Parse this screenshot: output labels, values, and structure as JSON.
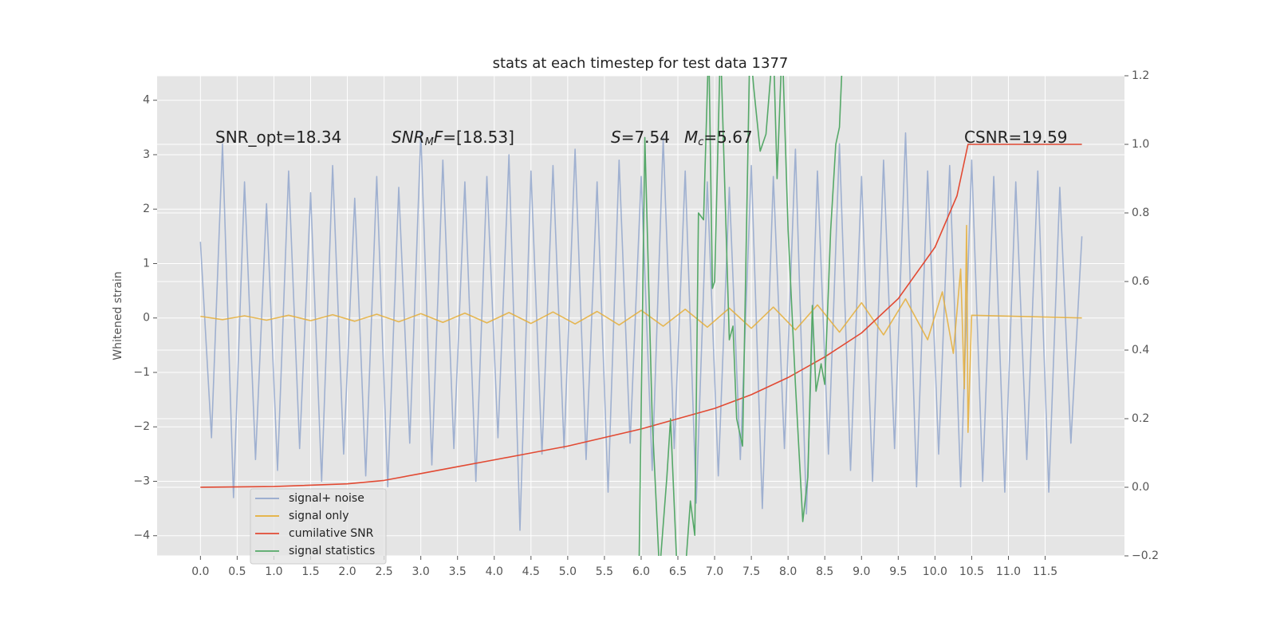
{
  "chart_data": {
    "type": "line",
    "title": "stats at each timestep for test data 1377",
    "ylabel": "Whitened strain",
    "annotations": [
      [
        {
          "text": "SNR_opt=18.34"
        }
      ],
      [
        {
          "text": "SNR",
          "style": "italic"
        },
        {
          "text": "M",
          "style": "italic-sub"
        },
        {
          "text": "F",
          "style": "italic"
        },
        {
          "text": "=[18.53]"
        }
      ],
      [
        {
          "text": "S",
          "style": "italic"
        },
        {
          "text": "=7.54"
        }
      ],
      [
        {
          "text": "M",
          "style": "italic"
        },
        {
          "text": "c",
          "style": "italic-sub"
        },
        {
          "text": "=5.67"
        }
      ],
      [
        {
          "text": "CSNR=19.59"
        }
      ]
    ],
    "xlim": [
      -0.59,
      12.58
    ],
    "xticks": [
      {
        "value": 0,
        "label": "0.0"
      },
      0.5,
      {
        "value": 1,
        "label": "1.0"
      },
      1.5,
      {
        "value": 2,
        "label": "2.0"
      },
      2.5,
      {
        "value": 3,
        "label": "3.0"
      },
      3.5,
      {
        "value": 4,
        "label": "4.0"
      },
      4.5,
      {
        "value": 5,
        "label": "5.0"
      },
      5.5,
      {
        "value": 6,
        "label": "6.0"
      },
      6.5,
      {
        "value": 7,
        "label": "7.0"
      },
      7.5,
      {
        "value": 8,
        "label": "8.0"
      },
      8.5,
      {
        "value": 9,
        "label": "9.0"
      },
      9.5,
      {
        "value": 10,
        "label": "10.0"
      },
      10.5,
      {
        "value": 11,
        "label": "11.0"
      },
      11.5
    ],
    "ylim": [
      -4.37,
      4.45
    ],
    "yticks": [
      {
        "value": -4,
        "label": "−4"
      },
      {
        "value": -3,
        "label": "−3"
      },
      {
        "value": -2,
        "label": "−2"
      },
      {
        "value": -1,
        "label": "−1"
      },
      0,
      1,
      2,
      3,
      4
    ],
    "y2lim": [
      -0.2,
      1.2
    ],
    "y2ticks": [
      {
        "value": -0.2,
        "label": "−0.2"
      },
      {
        "value": 0,
        "label": "0.0"
      },
      0.2,
      0.4,
      0.6,
      0.8,
      {
        "value": 1,
        "label": "1.0"
      },
      1.2
    ],
    "grid": true,
    "legend": "lower left",
    "series": [
      {
        "name": "signal+ noise",
        "color": "#93a7cc",
        "x": [
          0,
          0.15,
          0.3,
          0.45,
          0.6,
          0.75,
          0.9,
          1.05,
          1.2,
          1.35,
          1.5,
          1.65,
          1.8,
          1.95,
          2.1,
          2.25,
          2.4,
          2.55,
          2.7,
          2.85,
          3,
          3.15,
          3.3,
          3.45,
          3.6,
          3.75,
          3.9,
          4.05,
          4.2,
          4.35,
          4.5,
          4.65,
          4.8,
          4.95,
          5.1,
          5.25,
          5.4,
          5.55,
          5.7,
          5.85,
          6,
          6.15,
          6.3,
          6.45,
          6.6,
          6.75,
          6.9,
          7.05,
          7.2,
          7.35,
          7.5,
          7.65,
          7.8,
          7.95,
          8.1,
          8.25,
          8.4,
          8.55,
          8.7,
          8.85,
          9,
          9.15,
          9.3,
          9.45,
          9.6,
          9.75,
          9.9,
          10.05,
          10.2,
          10.35,
          10.5,
          10.65,
          10.8,
          10.95,
          11.1,
          11.25,
          11.4,
          11.55,
          11.7,
          11.85,
          12
        ],
        "values": [
          1.4,
          -2.2,
          3.2,
          -3.3,
          2.5,
          -2.6,
          2.1,
          -2.8,
          2.7,
          -2.4,
          2.3,
          -3.0,
          2.8,
          -2.5,
          2.2,
          -2.9,
          2.6,
          -3.1,
          2.4,
          -2.3,
          3.4,
          -2.7,
          2.9,
          -2.4,
          2.5,
          -3.0,
          2.6,
          -2.2,
          3.0,
          -3.9,
          2.7,
          -2.5,
          2.8,
          -2.4,
          3.1,
          -2.6,
          2.5,
          -3.2,
          2.9,
          -2.3,
          2.6,
          -2.8,
          3.3,
          -2.4,
          2.7,
          -3.4,
          2.5,
          -2.9,
          2.4,
          -2.6,
          2.8,
          -3.5,
          2.6,
          -2.4,
          3.1,
          -3.6,
          2.7,
          -2.5,
          3.2,
          -2.8,
          2.6,
          -3.0,
          2.9,
          -2.4,
          3.4,
          -3.1,
          2.7,
          -2.5,
          2.8,
          -3.1,
          2.9,
          -3.0,
          2.6,
          -3.2,
          2.5,
          -2.6,
          2.7,
          -3.2,
          2.4,
          -2.3,
          1.5
        ]
      },
      {
        "name": "signal only",
        "color": "#e5ae38",
        "x": [
          0,
          0.3,
          0.6,
          0.9,
          1.2,
          1.5,
          1.8,
          2.1,
          2.4,
          2.7,
          3,
          3.3,
          3.6,
          3.9,
          4.2,
          4.5,
          4.8,
          5.1,
          5.4,
          5.7,
          6,
          6.3,
          6.6,
          6.9,
          7.2,
          7.5,
          7.8,
          8.1,
          8.4,
          8.7,
          9,
          9.3,
          9.6,
          9.9,
          10.1,
          10.25,
          10.35,
          10.4,
          10.43,
          10.45,
          10.5,
          12
        ],
        "values": [
          0.03,
          -0.03,
          0.04,
          -0.04,
          0.05,
          -0.05,
          0.06,
          -0.06,
          0.07,
          -0.07,
          0.08,
          -0.08,
          0.09,
          -0.09,
          0.1,
          -0.1,
          0.11,
          -0.11,
          0.12,
          -0.13,
          0.14,
          -0.15,
          0.16,
          -0.17,
          0.18,
          -0.19,
          0.2,
          -0.22,
          0.24,
          -0.26,
          0.28,
          -0.31,
          0.35,
          -0.4,
          0.48,
          -0.65,
          0.9,
          -1.3,
          1.7,
          -2.1,
          0.05,
          0
        ]
      },
      {
        "name": "cumilative SNR",
        "color": "#e24a33",
        "axis": "y2",
        "x": [
          0,
          1,
          2,
          2.5,
          3,
          3.5,
          4,
          4.5,
          5,
          5.5,
          6,
          6.5,
          7,
          7.5,
          8,
          8.5,
          9,
          9.5,
          10,
          10.3,
          10.45,
          12
        ],
        "values": [
          0,
          0.002,
          0.01,
          0.02,
          0.04,
          0.06,
          0.08,
          0.1,
          0.12,
          0.145,
          0.17,
          0.2,
          0.23,
          0.27,
          0.32,
          0.38,
          0.45,
          0.55,
          0.7,
          0.85,
          1.0,
          1.0
        ]
      },
      {
        "name": "signal statistics",
        "color": "#55a868",
        "axis": "y2",
        "x": [
          5.97,
          6.05,
          6.15,
          6.25,
          6.35,
          6.4,
          6.5,
          6.6,
          6.67,
          6.73,
          6.78,
          6.85,
          6.92,
          6.97,
          7.0,
          7.08,
          7.2,
          7.25,
          7.3,
          7.38,
          7.48,
          7.53,
          7.62,
          7.7,
          7.8,
          7.85,
          7.92,
          8.0,
          8.1,
          8.2,
          8.27,
          8.33,
          8.38,
          8.45,
          8.5,
          8.58,
          8.65,
          8.7,
          8.75
        ],
        "values": [
          -0.25,
          1.02,
          0.2,
          -0.25,
          0.03,
          0.2,
          -0.3,
          -0.25,
          -0.04,
          -0.14,
          0.8,
          0.78,
          1.3,
          0.58,
          0.6,
          1.3,
          0.43,
          0.47,
          0.2,
          0.12,
          1.3,
          1.17,
          0.98,
          1.03,
          1.3,
          0.9,
          1.3,
          0.75,
          0.3,
          -0.1,
          0.03,
          0.53,
          0.28,
          0.36,
          0.3,
          0.75,
          1.0,
          1.05,
          1.3
        ]
      }
    ]
  }
}
